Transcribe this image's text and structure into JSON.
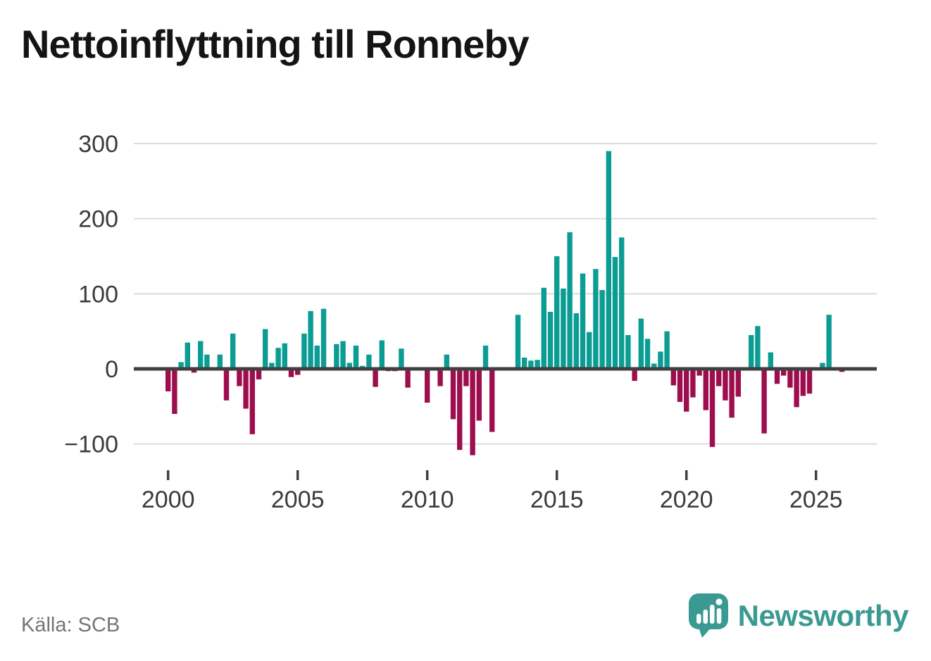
{
  "title": "Nettoinflyttning till Ronneby",
  "footer": {
    "source": "Källa: SCB",
    "brand": "Newsworthy"
  },
  "colors": {
    "positive_bar": "#0b9c94",
    "negative_bar": "#9e0e4e",
    "gridline": "#dcdcdc",
    "zero_line": "#3f3f3f",
    "tick_mark": "#3f3f3f",
    "axis_text": "#3b3b3b",
    "title_text": "#141414",
    "source_text": "#757575",
    "brand_teal": "#3a9a92"
  },
  "chart_data": {
    "type": "bar",
    "title": "Nettoinflyttning till Ronneby",
    "frequency": "quarterly",
    "start_period": "2000Q1",
    "end_period": "2026Q1",
    "xlabel": "",
    "ylabel": "",
    "ylim": [
      -120,
      300
    ],
    "grid": true,
    "legend": "none",
    "source": "Källa: SCB",
    "y_ticks": [
      {
        "value": 300,
        "label": "300"
      },
      {
        "value": 200,
        "label": "200"
      },
      {
        "value": 100,
        "label": "100"
      },
      {
        "value": 0,
        "label": "0"
      },
      {
        "value": -100,
        "label": "−100"
      }
    ],
    "x_ticks": [
      {
        "value": 2000,
        "label": "2000"
      },
      {
        "value": 2005,
        "label": "2005"
      },
      {
        "value": 2010,
        "label": "2010"
      },
      {
        "value": 2015,
        "label": "2015"
      },
      {
        "value": 2020,
        "label": "2020"
      },
      {
        "value": 2025,
        "label": "2025"
      }
    ],
    "values": [
      -30,
      -60,
      9,
      35,
      -5,
      37,
      19,
      0,
      19,
      -42,
      47,
      -23,
      -53,
      -87,
      -14,
      53,
      8,
      28,
      34,
      -11,
      -8,
      47,
      77,
      31,
      80,
      0,
      33,
      37,
      8,
      31,
      4,
      19,
      -24,
      38,
      -3,
      -3,
      27,
      -25,
      0,
      0,
      -45,
      0,
      -23,
      19,
      -67,
      -108,
      -23,
      -115,
      -69,
      31,
      -84,
      0,
      0,
      0,
      72,
      15,
      11,
      12,
      108,
      76,
      150,
      107,
      182,
      74,
      127,
      49,
      133,
      105,
      290,
      149,
      175,
      45,
      -16,
      67,
      40,
      7,
      23,
      50,
      -22,
      -44,
      -57,
      -38,
      -9,
      -55,
      -104,
      -23,
      -42,
      -65,
      -37,
      0,
      45,
      57,
      -86,
      22,
      -20,
      -9,
      -25,
      -51,
      -36,
      -33,
      0,
      8,
      72,
      0,
      -4
    ]
  }
}
